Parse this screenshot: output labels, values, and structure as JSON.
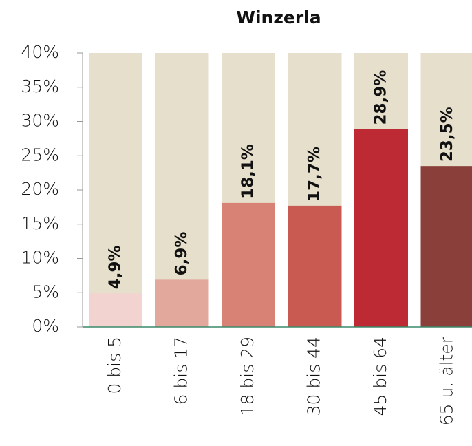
{
  "chart_data": {
    "type": "bar",
    "title": "Winzerla",
    "categories": [
      "0 bis 5",
      "6 bis 17",
      "18 bis 29",
      "30 bis 44",
      "45 bis 64",
      "65 u. älter"
    ],
    "values": [
      4.9,
      6.9,
      18.1,
      17.7,
      28.9,
      23.5
    ],
    "value_labels": [
      "4,9%",
      "6,9%",
      "18,1%",
      "17,7%",
      "28,9%",
      "23,5%"
    ],
    "colors": [
      "#f2d3cf",
      "#e3a89c",
      "#d88276",
      "#c95a51",
      "#bd2a33",
      "#8b3f3a"
    ],
    "background_color": "#e6dfcc",
    "ylim": [
      0,
      40
    ],
    "yticks": [
      {
        "value": 0,
        "label": "0%"
      },
      {
        "value": 5,
        "label": "5%"
      },
      {
        "value": 10,
        "label": "10%"
      },
      {
        "value": 15,
        "label": "15%"
      },
      {
        "value": 20,
        "label": "20%"
      },
      {
        "value": 25,
        "label": "25%"
      },
      {
        "value": 30,
        "label": "30%"
      },
      {
        "value": 35,
        "label": "35%"
      },
      {
        "value": 40,
        "label": "40%"
      }
    ]
  }
}
